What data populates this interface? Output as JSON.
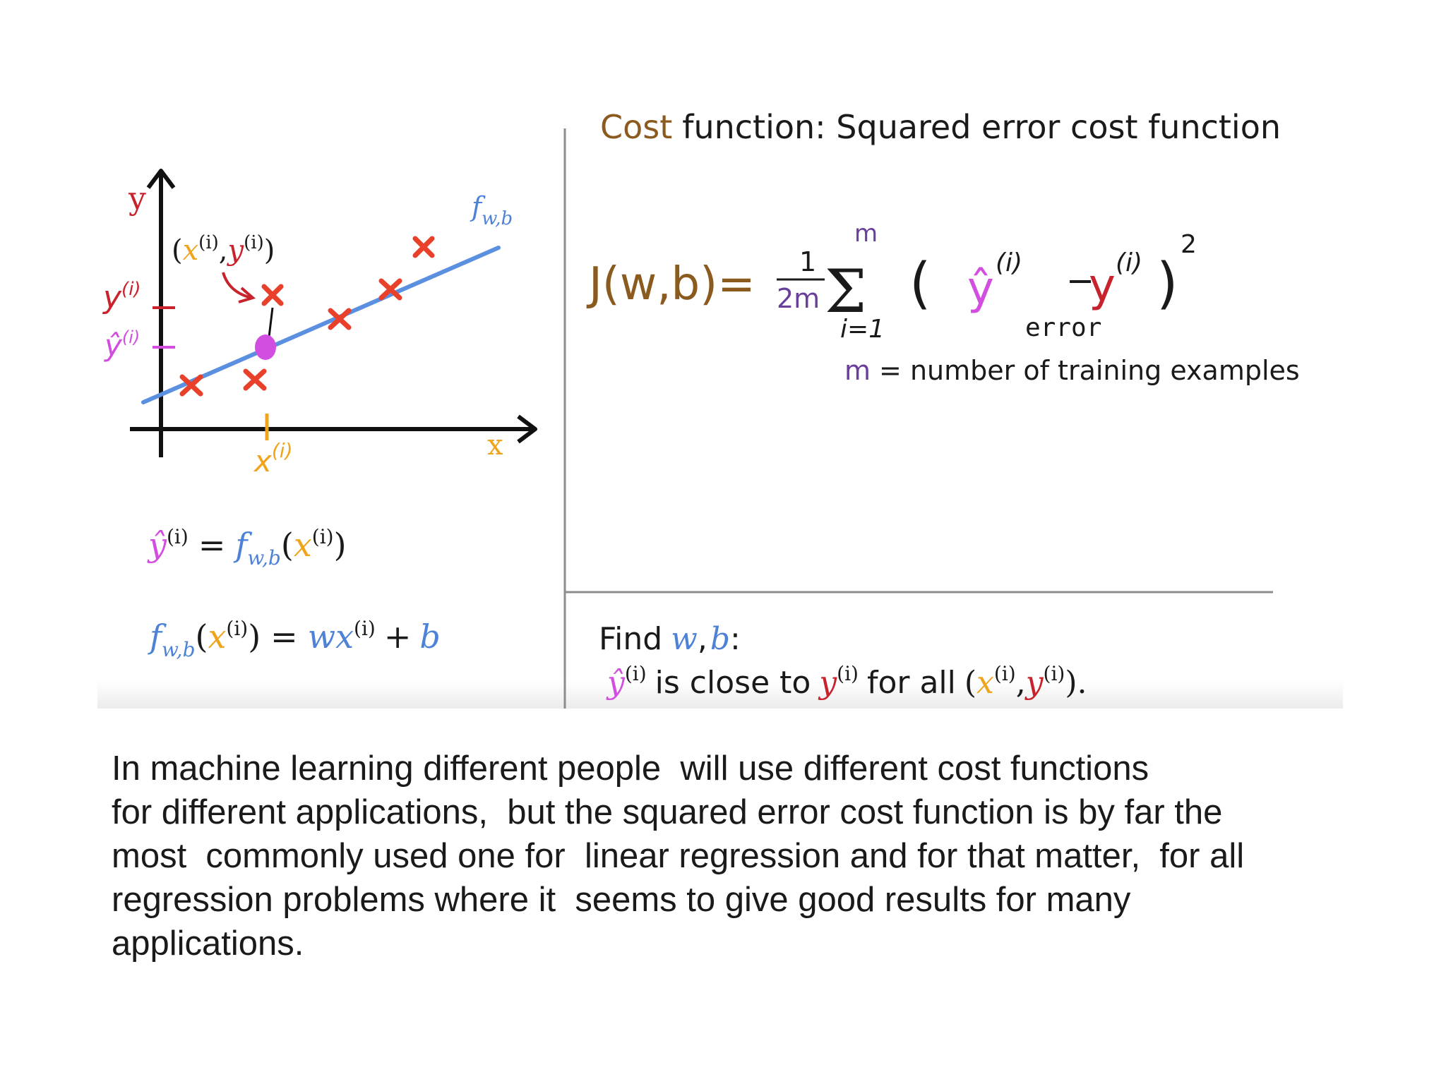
{
  "slide": {
    "graph": {
      "y_axis_label": "y",
      "x_axis_label": "x",
      "point_label": {
        "open": "(",
        "x": "x",
        "sup": "(i)",
        "comma": ",",
        "y": "y",
        "close": ")"
      },
      "line_label": {
        "f": "f",
        "sub": "w,b"
      },
      "y_tick_label": "y",
      "y_tick_sup": "(i)",
      "yhat_tick_label": "ŷ",
      "yhat_tick_sup": "(i)",
      "x_tick_label": "x",
      "x_tick_sup": "(i)"
    },
    "eq_prediction": {
      "yhat": "ŷ",
      "sup": "(i)",
      "equals": "=",
      "f": "f",
      "sub": "w,b",
      "open": "(",
      "x": "x",
      "close": ")"
    },
    "eq_model": {
      "f": "f",
      "sub": "w,b",
      "open": "(",
      "x": "x",
      "sup": "(i)",
      "close": ")",
      "equals": "=",
      "w": "w",
      "x2": "x",
      "plus": "+",
      "b": "b"
    },
    "title": {
      "cost": "Cost",
      "rest": "function: Squared error cost function"
    },
    "cost_formula": {
      "lhs": "J(w,b)=",
      "frac_num": "1",
      "frac_den": "2m",
      "sigma": "Σ",
      "upper": "m",
      "lower": "i=1",
      "open": "(",
      "yhat": "ŷ",
      "yhat_sup": "(i)",
      "minus": "−",
      "y": "y",
      "y_sup": "(i)",
      "close": ")",
      "power": "2",
      "error_label": "error"
    },
    "m_def": {
      "m": "m",
      "rest": "= number of training examples"
    },
    "find": {
      "line1_prefix": "Find",
      "w": "w",
      "comma": ",",
      "b": "b",
      "colon": ":",
      "yhat": "ŷ",
      "sup": "(i)",
      "mid": "is close to",
      "y": "y",
      "for_all": "for all",
      "open": "(",
      "x": "x",
      "comma2": ",",
      "y2": "y",
      "close": ").",
      "sup_x": "(i)",
      "sup_y": "(i)"
    }
  },
  "caption": {
    "lines": [
      "In machine learning different people  will use different cost functions",
      "for different applications,  but the squared error cost function is by far the",
      "most  commonly used one for  linear regression and for that matter,  for all",
      "regression problems where it  seems to give good results for many",
      "applications."
    ]
  },
  "colors": {
    "axis": "#111111",
    "line": "#5b8fe0",
    "cross": "#e8402a",
    "x_orange": "#f0a41c",
    "yhat_purple": "#d24ee0",
    "y_red": "#c8232c",
    "cost_brown": "#8a5a1e",
    "m_purple": "#6a3f9a",
    "w_blue": "#4d82d6",
    "divider": "#8c8c8c",
    "text": "#1a1a1a"
  }
}
